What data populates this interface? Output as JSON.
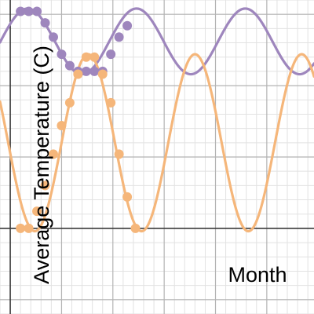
{
  "chart_data": {
    "type": "scatter",
    "xlabel": "Month",
    "ylabel": "Average Temperature (C)",
    "xlim": [
      -0.5,
      14.8
    ],
    "ylim": [
      -3.0,
      8.0
    ],
    "grid": true,
    "series": [
      {
        "color": "#9e86bd",
        "points": [
          {
            "x": 0.5,
            "y": 7.6
          },
          {
            "x": 0.9,
            "y": 7.6
          },
          {
            "x": 1.3,
            "y": 7.6
          },
          {
            "x": 1.7,
            "y": 7.2
          },
          {
            "x": 2.1,
            "y": 6.7
          },
          {
            "x": 2.5,
            "y": 6.1
          },
          {
            "x": 2.9,
            "y": 5.7
          },
          {
            "x": 3.3,
            "y": 5.5
          },
          {
            "x": 3.7,
            "y": 5.5
          },
          {
            "x": 4.1,
            "y": 5.5
          },
          {
            "x": 4.5,
            "y": 5.5
          },
          {
            "x": 4.9,
            "y": 6.1
          },
          {
            "x": 5.3,
            "y": 6.7
          },
          {
            "x": 5.7,
            "y": 7.1
          }
        ],
        "curve": {
          "amplitude": 1.15,
          "midline": 6.55,
          "period": 5.3,
          "peak_x": 0.85
        }
      },
      {
        "color": "#f5b67a",
        "points": [
          {
            "x": 0.5,
            "y": 0.0
          },
          {
            "x": 0.9,
            "y": 0.0
          },
          {
            "x": 1.3,
            "y": 0.6
          },
          {
            "x": 1.7,
            "y": 1.5
          },
          {
            "x": 2.1,
            "y": 2.6
          },
          {
            "x": 2.5,
            "y": 3.6
          },
          {
            "x": 2.9,
            "y": 4.4
          },
          {
            "x": 3.3,
            "y": 5.4
          },
          {
            "x": 3.7,
            "y": 6.0
          },
          {
            "x": 4.1,
            "y": 6.0
          },
          {
            "x": 4.5,
            "y": 5.4
          },
          {
            "x": 4.9,
            "y": 4.4
          },
          {
            "x": 5.3,
            "y": 2.6
          },
          {
            "x": 5.7,
            "y": 1.1
          },
          {
            "x": 6.1,
            "y": 0.0
          }
        ],
        "curve": {
          "amplitude": 3.1,
          "midline": 3.0,
          "period": 5.2,
          "peak_x": 3.8
        }
      }
    ]
  }
}
